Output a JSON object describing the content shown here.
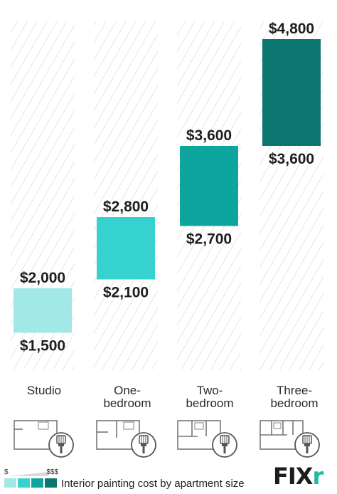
{
  "chart_data": {
    "type": "bar",
    "subtype": "floating-range",
    "categories": [
      "Studio",
      "One-\nbedroom",
      "Two-\nbedroom",
      "Three-\nbedroom"
    ],
    "low": [
      1500,
      2100,
      2700,
      3600
    ],
    "high": [
      2000,
      2800,
      3600,
      4800
    ],
    "low_labels": [
      "$1,500",
      "$2,100",
      "$2,700",
      "$3,600"
    ],
    "high_labels": [
      "$2,000",
      "$2,800",
      "$3,600",
      "$4,800"
    ],
    "colors": [
      "#a2e8e6",
      "#36d2cf",
      "#0ea59e",
      "#0b7570"
    ],
    "ylim": [
      1000,
      5000
    ],
    "title": "",
    "xlabel": "",
    "ylabel": "",
    "grid": false,
    "background_pattern": "diagonal-hatch"
  },
  "legend": {
    "min_label": "$",
    "max_label": "$$$",
    "swatches": [
      "#a2e8e6",
      "#36d2cf",
      "#0ea59e",
      "#0b7570"
    ]
  },
  "caption": "Interior painting cost by apartment size",
  "icons": [
    "floor-plan-icon",
    "paint-brush-icon"
  ],
  "logo": {
    "main": "FIX",
    "accent": "r"
  }
}
